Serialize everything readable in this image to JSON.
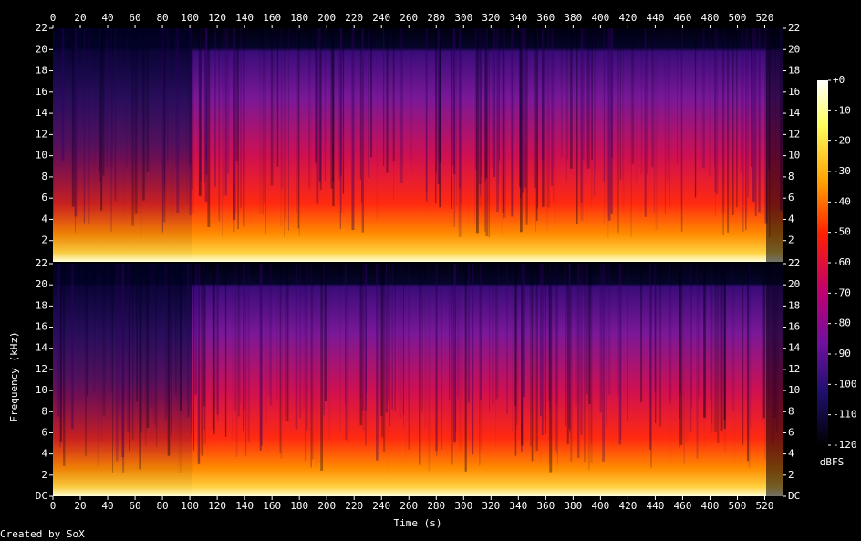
{
  "chart_data": [
    {
      "type": "spectrogram",
      "ylabel": "Frequency (kHz)",
      "xlim": [
        0,
        533
      ],
      "xticks": [
        0,
        20,
        40,
        60,
        80,
        100,
        120,
        140,
        160,
        180,
        200,
        220,
        240,
        260,
        280,
        300,
        320,
        340,
        360,
        380,
        400,
        420,
        440,
        460,
        480,
        500,
        520
      ],
      "ylim": [
        0,
        22
      ],
      "yticks": [
        2,
        4,
        6,
        8,
        10,
        12,
        14,
        16,
        18,
        20,
        22
      ],
      "colorbar": {
        "label": "dBFS",
        "lim": [
          -120,
          0
        ],
        "ticks": [
          {
            "value": 0,
            "label": "+0"
          },
          -10,
          -20,
          -30,
          -40,
          -50,
          -60,
          -70,
          -80,
          -90,
          -100,
          -110,
          -120
        ]
      }
    },
    {
      "type": "spectrogram",
      "xlabel": "Time (s)",
      "xlim": [
        0,
        533
      ],
      "xticks": [
        0,
        20,
        40,
        60,
        80,
        100,
        120,
        140,
        160,
        180,
        200,
        220,
        240,
        260,
        280,
        300,
        320,
        340,
        360,
        380,
        400,
        420,
        440,
        460,
        480,
        500,
        520
      ],
      "ylim": [
        0,
        22
      ],
      "yticks": [
        {
          "value": 0,
          "label": "DC"
        },
        2,
        4,
        6,
        8,
        10,
        12,
        14,
        16,
        18,
        20,
        22
      ]
    }
  ],
  "footer": "Created by SoX"
}
